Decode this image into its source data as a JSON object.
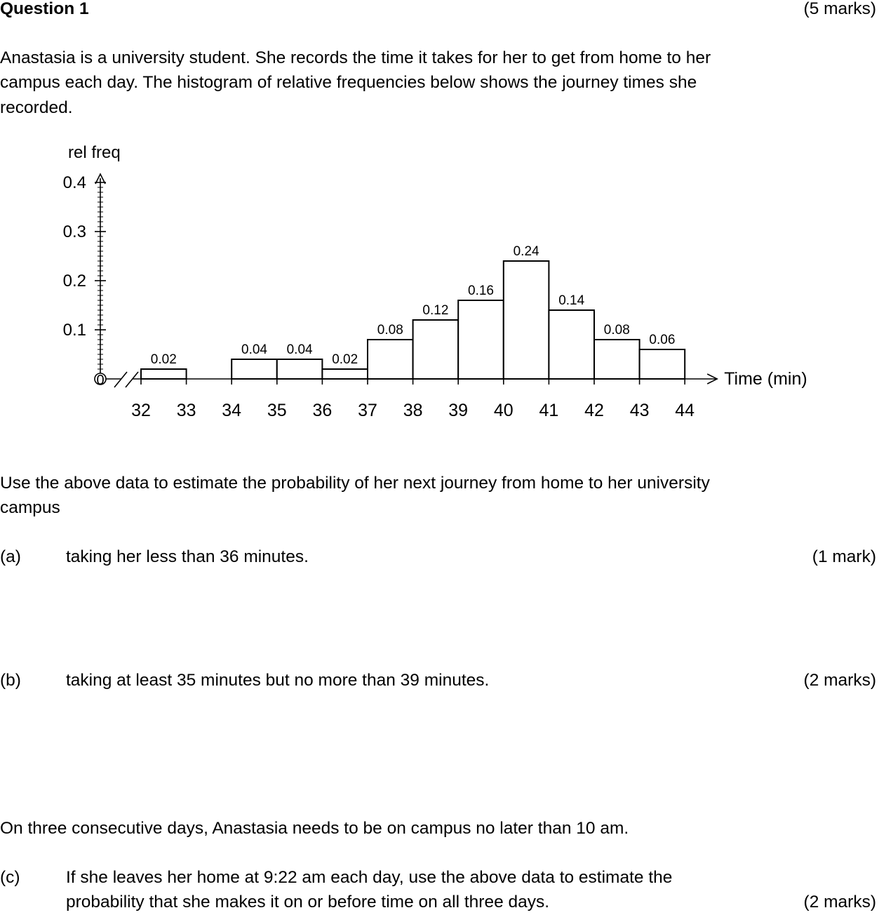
{
  "question": {
    "title": "Question 1",
    "marks": "(5 marks)",
    "intro_lines": [
      "Anastasia is a university student. She records the time it takes for her to get from home to her",
      "campus each day. The histogram of relative frequencies below shows the journey times she",
      "recorded."
    ],
    "prompt_lines": [
      "Use the above data to estimate the probability of her next journey from home to her university",
      "campus"
    ],
    "parts": [
      {
        "label": "(a)",
        "lines": [
          "taking her less than 36 minutes."
        ],
        "marks": "(1 mark)"
      },
      {
        "label": "(b)",
        "lines": [
          "taking at least 35 minutes but no more than 39 minutes."
        ],
        "marks": "(2 marks)"
      },
      {
        "label": "(c)",
        "lines": [
          "If she leaves her home at 9:22 am each day, use the above data to estimate the",
          "probability that she makes it on or before time on all three days."
        ],
        "marks": "(2 marks)"
      }
    ],
    "context_c": "On three consecutive days, Anastasia needs to be on campus no later than 10 am."
  },
  "chart_data": {
    "type": "bar",
    "ylabel": "rel freq",
    "xlabel": "Time (min)",
    "ylim": [
      0,
      0.4
    ],
    "yticks": [
      "0.1",
      "0.2",
      "0.3",
      "0.4"
    ],
    "origin_label": "0",
    "xticks": [
      "32",
      "33",
      "34",
      "35",
      "36",
      "37",
      "38",
      "39",
      "40",
      "41",
      "42",
      "43",
      "44"
    ],
    "bins": [
      {
        "start": 32,
        "end": 33,
        "value": 0.02,
        "label": "0.02"
      },
      {
        "start": 33,
        "end": 34,
        "value": 0,
        "label": ""
      },
      {
        "start": 34,
        "end": 35,
        "value": 0.04,
        "label": "0.04"
      },
      {
        "start": 35,
        "end": 36,
        "value": 0.04,
        "label": "0.04"
      },
      {
        "start": 36,
        "end": 37,
        "value": 0.02,
        "label": "0.02"
      },
      {
        "start": 37,
        "end": 38,
        "value": 0.08,
        "label": "0.08"
      },
      {
        "start": 38,
        "end": 39,
        "value": 0.12,
        "label": "0.12"
      },
      {
        "start": 39,
        "end": 40,
        "value": 0.16,
        "label": "0.16"
      },
      {
        "start": 40,
        "end": 41,
        "value": 0.24,
        "label": "0.24"
      },
      {
        "start": 41,
        "end": 42,
        "value": 0.14,
        "label": "0.14"
      },
      {
        "start": 42,
        "end": 43,
        "value": 0.08,
        "label": "0.08"
      },
      {
        "start": 43,
        "end": 44,
        "value": 0.06,
        "label": "0.06"
      }
    ],
    "axis_break": true
  }
}
